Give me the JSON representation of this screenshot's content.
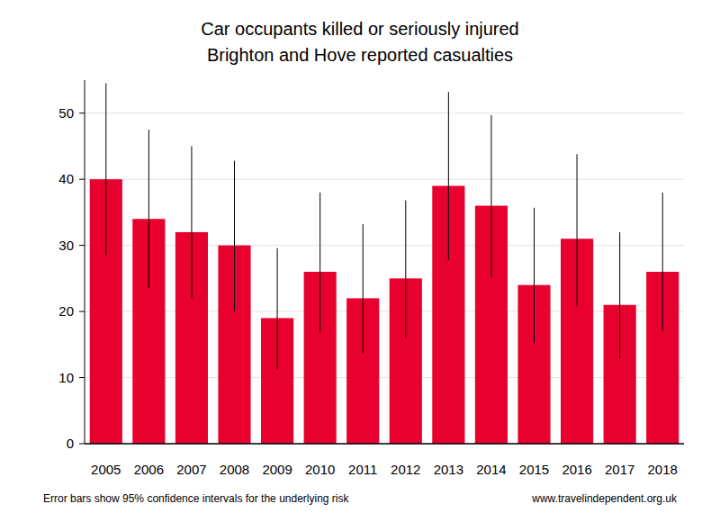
{
  "chart_data": {
    "type": "bar",
    "title": "Car occupants killed or seriously injured",
    "subtitle": "Brighton and Hove reported casualties",
    "categories": [
      "2005",
      "2006",
      "2007",
      "2008",
      "2009",
      "2010",
      "2011",
      "2012",
      "2013",
      "2014",
      "2015",
      "2016",
      "2017",
      "2018"
    ],
    "values": [
      40,
      34,
      32,
      30,
      19,
      26,
      22,
      25,
      39,
      36,
      24,
      31,
      21,
      26
    ],
    "error_low": [
      28.5,
      23.5,
      22,
      20,
      11.3,
      17,
      13.7,
      16,
      27.8,
      25.2,
      15.2,
      20.8,
      12.8,
      17
    ],
    "error_high": [
      54.5,
      47.5,
      45,
      42.8,
      29.6,
      38,
      33.2,
      36.8,
      53.2,
      49.7,
      35.7,
      43.8,
      32,
      38
    ],
    "color": "#e8002f",
    "ylim": [
      0,
      55
    ],
    "yticks": [
      0,
      10,
      20,
      30,
      40,
      50
    ],
    "grid": true,
    "note": "Error bars show 95% confidence intervals for the underlying risk",
    "source": "www.travelindependent.org.uk"
  }
}
